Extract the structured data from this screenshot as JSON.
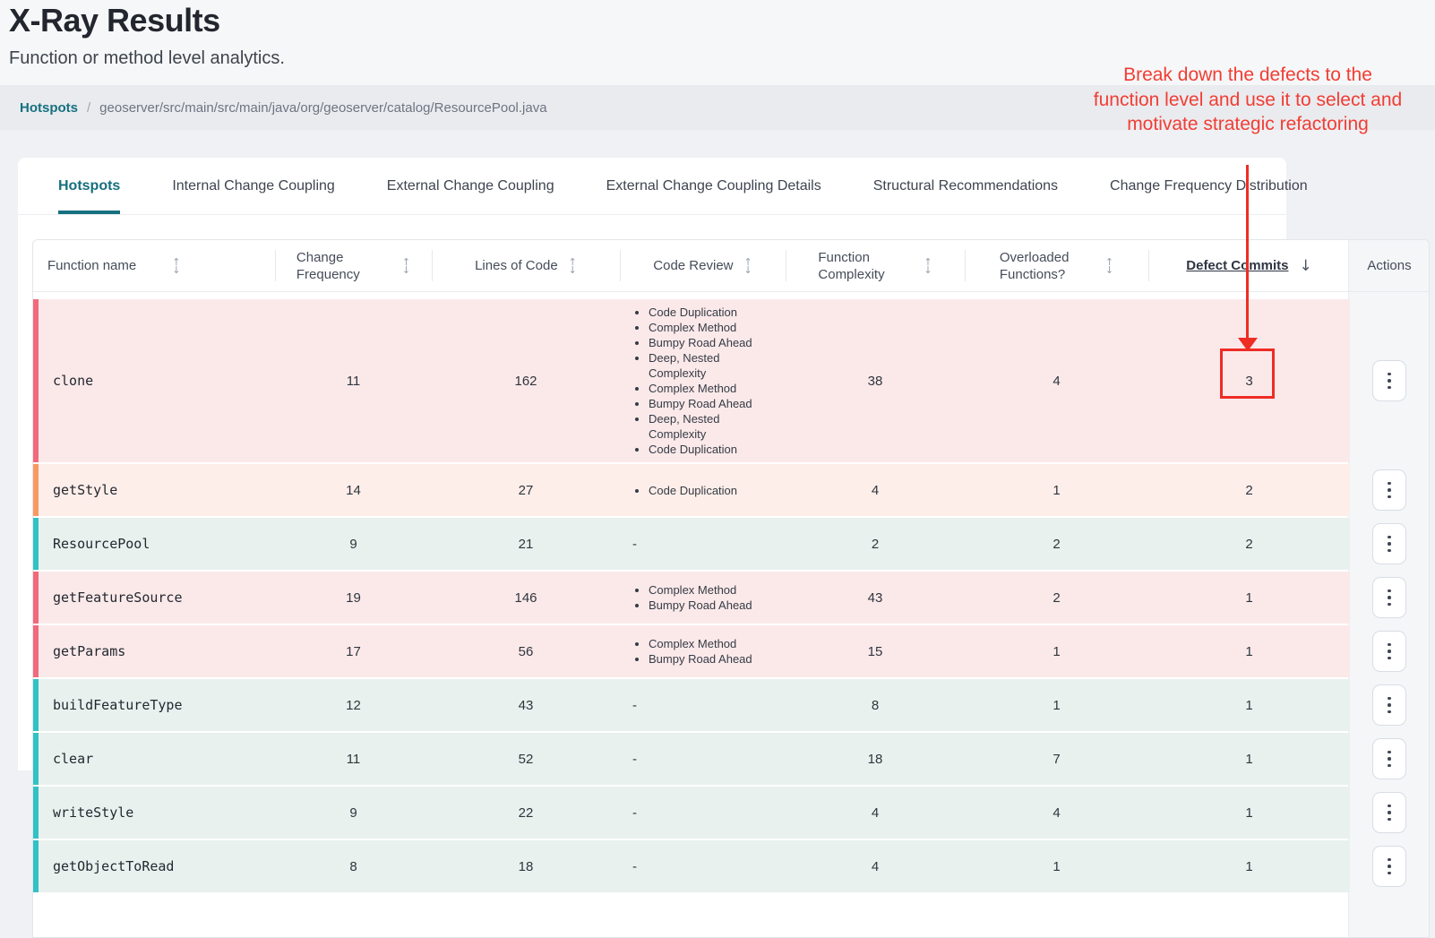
{
  "page": {
    "title": "X-Ray Results",
    "subtitle": "Function or method level analytics."
  },
  "breadcrumb": {
    "root": "Hotspots",
    "separator": "/",
    "path": "geoserver/src/main/src/main/java/org/geoserver/catalog/ResourcePool.java"
  },
  "tabs": [
    {
      "label": "Hotspots",
      "active": true
    },
    {
      "label": "Internal Change Coupling",
      "active": false
    },
    {
      "label": "External Change Coupling",
      "active": false
    },
    {
      "label": "External Change Coupling Details",
      "active": false
    },
    {
      "label": "Structural Recommendations",
      "active": false
    },
    {
      "label": "Change Frequency Distribution",
      "active": false
    }
  ],
  "annotation": {
    "text": "Break down the defects to the function level and use it to select and motivate strategic refactoring",
    "color": "#f23d33",
    "box_color": "#ee2d24"
  },
  "table": {
    "columns": [
      {
        "label": "Function name",
        "sortable": true,
        "sorted": null
      },
      {
        "label": "Change Frequency",
        "sortable": true,
        "sorted": null
      },
      {
        "label": "Lines of Code",
        "sortable": true,
        "sorted": null
      },
      {
        "label": "Code Review",
        "sortable": true,
        "sorted": null
      },
      {
        "label": "Function Complexity",
        "sortable": true,
        "sorted": null
      },
      {
        "label": "Overloaded Functions?",
        "sortable": true,
        "sorted": null
      },
      {
        "label": "Defect Commits",
        "sortable": true,
        "sorted": "desc"
      },
      {
        "label": "Actions",
        "sortable": false,
        "sorted": null
      }
    ],
    "empty_value": "-",
    "rows": [
      {
        "function": "clone",
        "change_frequency": "11",
        "lines_of_code": "162",
        "code_review": [
          "Code Duplication",
          "Complex Method",
          "Bumpy Road Ahead",
          "Deep, Nested Complexity",
          "Complex Method",
          "Bumpy Road Ahead",
          "Deep, Nested Complexity",
          "Code Duplication"
        ],
        "function_complexity": "38",
        "overloaded_functions": "4",
        "defect_commits": "3",
        "severity": "red",
        "annotated": true
      },
      {
        "function": "getStyle",
        "change_frequency": "14",
        "lines_of_code": "27",
        "code_review": [
          "Code Duplication"
        ],
        "function_complexity": "4",
        "overloaded_functions": "1",
        "defect_commits": "2",
        "severity": "orange",
        "annotated": false
      },
      {
        "function": "ResourcePool",
        "change_frequency": "9",
        "lines_of_code": "21",
        "code_review": [],
        "function_complexity": "2",
        "overloaded_functions": "2",
        "defect_commits": "2",
        "severity": "green",
        "annotated": false
      },
      {
        "function": "getFeatureSource",
        "change_frequency": "19",
        "lines_of_code": "146",
        "code_review": [
          "Complex Method",
          "Bumpy Road Ahead"
        ],
        "function_complexity": "43",
        "overloaded_functions": "2",
        "defect_commits": "1",
        "severity": "red",
        "annotated": false
      },
      {
        "function": "getParams",
        "change_frequency": "17",
        "lines_of_code": "56",
        "code_review": [
          "Complex Method",
          "Bumpy Road Ahead"
        ],
        "function_complexity": "15",
        "overloaded_functions": "1",
        "defect_commits": "1",
        "severity": "red",
        "annotated": false
      },
      {
        "function": "buildFeatureType",
        "change_frequency": "12",
        "lines_of_code": "43",
        "code_review": [],
        "function_complexity": "8",
        "overloaded_functions": "1",
        "defect_commits": "1",
        "severity": "green",
        "annotated": false
      },
      {
        "function": "clear",
        "change_frequency": "11",
        "lines_of_code": "52",
        "code_review": [],
        "function_complexity": "18",
        "overloaded_functions": "7",
        "defect_commits": "1",
        "severity": "green",
        "annotated": false
      },
      {
        "function": "writeStyle",
        "change_frequency": "9",
        "lines_of_code": "22",
        "code_review": [],
        "function_complexity": "4",
        "overloaded_functions": "4",
        "defect_commits": "1",
        "severity": "green",
        "annotated": false
      },
      {
        "function": "getObjectToRead",
        "change_frequency": "8",
        "lines_of_code": "18",
        "code_review": [],
        "function_complexity": "4",
        "overloaded_functions": "1",
        "defect_commits": "1",
        "severity": "green",
        "annotated": false
      }
    ],
    "severity_styles": {
      "red": {
        "bg": "#fbe9ea",
        "stripe": "#f2697c"
      },
      "orange": {
        "bg": "#fdeeea",
        "stripe": "#f79a62"
      },
      "green": {
        "bg": "#e9f1ee",
        "stripe": "#32c1c6"
      }
    }
  },
  "colors": {
    "accent_teal": "#16707f",
    "page_background": "#f0f1f4",
    "actions_column_bg": "#f4f6f8"
  }
}
